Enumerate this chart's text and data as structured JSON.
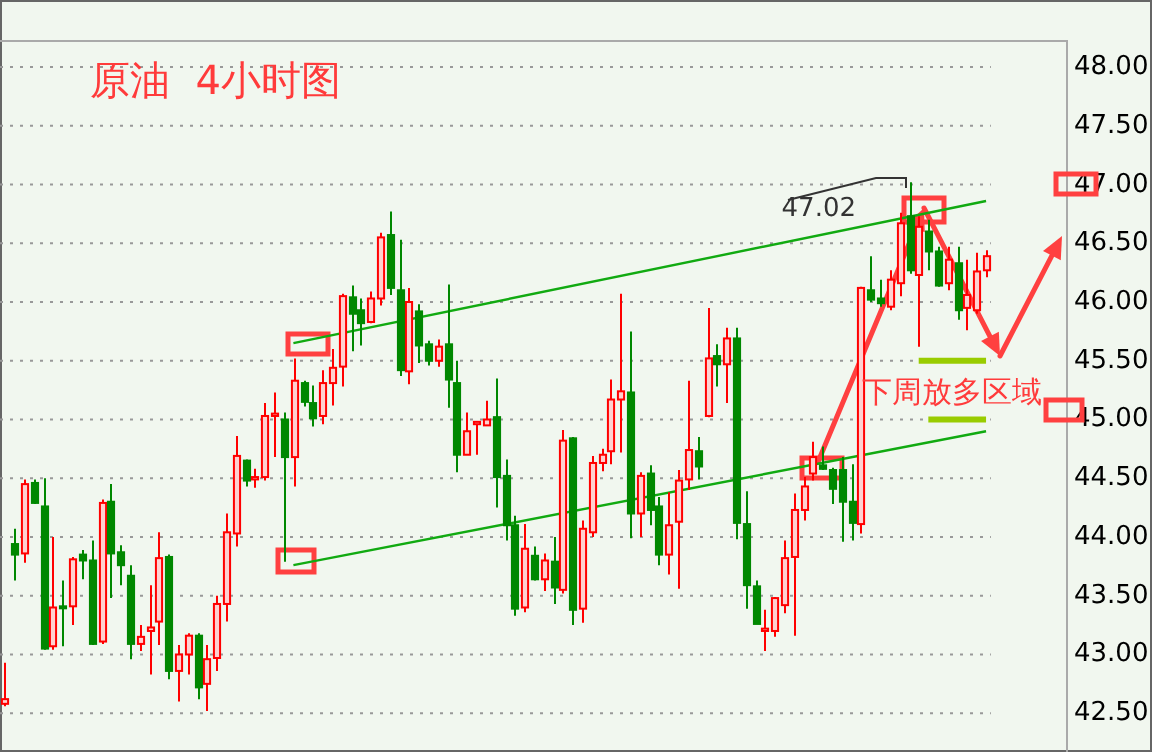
{
  "chart_data": {
    "type": "candlestick",
    "title": "原油  4小时图",
    "categories": [
      null,
      null,
      null,
      null,
      null,
      null,
      null,
      null,
      null,
      null,
      null,
      null,
      null,
      null,
      null,
      null,
      null,
      null,
      null,
      null,
      null,
      null,
      null,
      null,
      null,
      null,
      null,
      null,
      null,
      null,
      null,
      null,
      null,
      null,
      null,
      null,
      null,
      null,
      null,
      null,
      null,
      null,
      null,
      null,
      null,
      null,
      null,
      null,
      null,
      null,
      null,
      null,
      null,
      null,
      null,
      null,
      null,
      null,
      null,
      null,
      null,
      null,
      null,
      null,
      null,
      null,
      null,
      null,
      null,
      null,
      null,
      null,
      null,
      null,
      null,
      null,
      null,
      null,
      null,
      null,
      null,
      null,
      null,
      null,
      null,
      null,
      null,
      null,
      null,
      null,
      null,
      null,
      null,
      null,
      null,
      null,
      null,
      null,
      null,
      null,
      null,
      null,
      null
    ],
    "ylim": [
      42.17,
      48.23
    ],
    "yticks": [
      {
        "value": 42.5,
        "label": "42.50"
      },
      {
        "value": 43,
        "label": "43.00"
      },
      {
        "value": 43.5,
        "label": "43.50"
      },
      {
        "value": 44,
        "label": "44.00"
      },
      {
        "value": 44.5,
        "label": "44.50"
      },
      {
        "value": 45,
        "label": "45.00"
      },
      {
        "value": 45.5,
        "label": "45.50"
      },
      {
        "value": 46,
        "label": "46.00"
      },
      {
        "value": 46.5,
        "label": "46.50"
      },
      {
        "value": 47,
        "label": "47.00"
      },
      {
        "value": 47.5,
        "label": "47.50"
      },
      {
        "value": 48,
        "label": "48.00"
      }
    ],
    "tick_labels": "y",
    "grid": "y",
    "series": [
      {
        "ohlc": [
          [
            42.58,
            42.93,
            42.56,
            42.62
          ],
          [
            43.94,
            44.07,
            43.63,
            43.85
          ],
          [
            43.86,
            44.49,
            43.78,
            44.45
          ],
          [
            44.46,
            44.49,
            44.28,
            44.29
          ],
          [
            44.26,
            44.5,
            43.04,
            43.05
          ],
          [
            43.07,
            44.0,
            43.04,
            43.4
          ],
          [
            43.41,
            43.63,
            43.07,
            43.4
          ],
          [
            43.41,
            43.83,
            43.25,
            43.81
          ],
          [
            43.85,
            43.89,
            43.64,
            43.8
          ],
          [
            43.8,
            43.97,
            43.08,
            43.09
          ],
          [
            43.11,
            44.32,
            43.09,
            44.29
          ],
          [
            44.3,
            44.45,
            43.48,
            43.86
          ],
          [
            43.87,
            43.93,
            43.59,
            43.76
          ],
          [
            43.67,
            43.76,
            42.96,
            43.09
          ],
          [
            43.09,
            43.25,
            43.03,
            43.15
          ],
          [
            43.2,
            43.59,
            42.83,
            43.23
          ],
          [
            43.28,
            44.04,
            43.08,
            43.82
          ],
          [
            43.83,
            43.85,
            42.79,
            42.86
          ],
          [
            42.86,
            43.08,
            42.6,
            43.0
          ],
          [
            43.0,
            43.18,
            42.83,
            43.16
          ],
          [
            43.16,
            43.18,
            42.62,
            42.72
          ],
          [
            42.75,
            43.08,
            42.52,
            42.96
          ],
          [
            42.97,
            43.5,
            42.86,
            43.43
          ],
          [
            43.43,
            44.2,
            43.28,
            44.04
          ],
          [
            44.03,
            44.86,
            43.92,
            44.69
          ],
          [
            44.65,
            44.66,
            44.43,
            44.48
          ],
          [
            44.49,
            44.58,
            44.42,
            44.51
          ],
          [
            44.51,
            45.14,
            44.48,
            45.03
          ],
          [
            45.03,
            45.23,
            44.68,
            45.05
          ],
          [
            45.0,
            45.06,
            43.79,
            44.68
          ],
          [
            44.68,
            45.52,
            44.43,
            45.33
          ],
          [
            45.31,
            45.33,
            45.11,
            45.15
          ],
          [
            45.14,
            45.29,
            44.94,
            45.01
          ],
          [
            45.03,
            45.42,
            44.96,
            45.31
          ],
          [
            45.31,
            45.6,
            45.12,
            45.44
          ],
          [
            45.45,
            46.07,
            45.28,
            46.05
          ],
          [
            46.04,
            46.14,
            45.58,
            45.9
          ],
          [
            45.93,
            46.03,
            45.63,
            45.82
          ],
          [
            45.83,
            46.09,
            45.82,
            46.03
          ],
          [
            46.03,
            46.59,
            45.97,
            46.55
          ],
          [
            46.57,
            46.77,
            46.06,
            46.12
          ],
          [
            46.1,
            46.53,
            45.37,
            45.42
          ],
          [
            45.41,
            46.12,
            45.3,
            46.0
          ],
          [
            45.92,
            45.98,
            45.48,
            45.63
          ],
          [
            45.64,
            45.67,
            45.46,
            45.5
          ],
          [
            45.5,
            45.68,
            45.45,
            45.62
          ],
          [
            45.64,
            46.15,
            45.1,
            45.34
          ],
          [
            45.31,
            45.5,
            44.55,
            44.7
          ],
          [
            44.7,
            45.06,
            44.7,
            44.9
          ],
          [
            44.96,
            44.98,
            44.7,
            44.98
          ],
          [
            44.95,
            45.16,
            44.95,
            45.0
          ],
          [
            45.02,
            45.35,
            44.25,
            44.51
          ],
          [
            44.52,
            44.66,
            43.97,
            44.1
          ],
          [
            44.1,
            44.18,
            43.33,
            43.39
          ],
          [
            43.4,
            44.11,
            43.36,
            43.9
          ],
          [
            43.84,
            43.92,
            43.63,
            43.64
          ],
          [
            43.64,
            43.86,
            43.54,
            43.8
          ],
          [
            43.79,
            44.0,
            43.43,
            43.57
          ],
          [
            43.55,
            44.91,
            43.52,
            44.82
          ],
          [
            44.84,
            44.85,
            43.25,
            43.38
          ],
          [
            43.39,
            44.14,
            43.27,
            44.07
          ],
          [
            44.04,
            44.69,
            44.0,
            44.63
          ],
          [
            44.63,
            44.75,
            44.56,
            44.7
          ],
          [
            44.73,
            45.34,
            44.62,
            45.17
          ],
          [
            45.17,
            46.07,
            44.72,
            45.24
          ],
          [
            45.23,
            45.75,
            43.99,
            44.2
          ],
          [
            44.2,
            44.55,
            44.0,
            44.52
          ],
          [
            44.54,
            44.61,
            44.1,
            44.23
          ],
          [
            44.26,
            44.34,
            43.76,
            43.85
          ],
          [
            43.85,
            44.38,
            43.68,
            44.1
          ],
          [
            44.13,
            44.57,
            43.56,
            44.48
          ],
          [
            44.49,
            45.33,
            44.4,
            44.74
          ],
          [
            44.73,
            44.85,
            44.49,
            44.6
          ],
          [
            45.03,
            45.95,
            45.02,
            45.52
          ],
          [
            45.54,
            45.64,
            45.28,
            45.47
          ],
          [
            45.47,
            45.78,
            45.14,
            45.69
          ],
          [
            45.69,
            45.78,
            43.98,
            44.12
          ],
          [
            44.11,
            44.39,
            43.39,
            43.59
          ],
          [
            43.58,
            43.63,
            43.26,
            43.26
          ],
          [
            43.2,
            43.38,
            43.03,
            43.22
          ],
          [
            43.2,
            43.49,
            43.15,
            43.48
          ],
          [
            43.42,
            43.97,
            43.35,
            43.82
          ],
          [
            43.83,
            44.37,
            43.16,
            44.23
          ],
          [
            44.23,
            44.51,
            44.14,
            44.43
          ],
          [
            44.54,
            44.81,
            44.48,
            44.68
          ],
          [
            44.61,
            44.77,
            44.57,
            44.58
          ],
          [
            44.57,
            44.59,
            44.28,
            44.41
          ],
          [
            44.57,
            44.68,
            43.96,
            44.3
          ],
          [
            44.3,
            44.62,
            43.97,
            44.12
          ],
          [
            44.11,
            46.13,
            44.03,
            46.12
          ],
          [
            46.1,
            46.39,
            46.0,
            46.02
          ],
          [
            46.03,
            46.19,
            45.96,
            45.99
          ],
          [
            45.96,
            46.27,
            45.93,
            46.19
          ],
          [
            46.16,
            46.76,
            46.05,
            46.67
          ],
          [
            46.73,
            47.02,
            46.24,
            46.27
          ],
          [
            46.23,
            46.73,
            45.62,
            46.64
          ],
          [
            46.6,
            46.7,
            46.27,
            46.43
          ],
          [
            46.43,
            46.47,
            46.13,
            46.14
          ],
          [
            46.16,
            46.47,
            46.1,
            46.36
          ],
          [
            46.33,
            46.47,
            45.85,
            45.93
          ],
          [
            45.95,
            46.36,
            45.76,
            46.06
          ],
          [
            45.93,
            46.42,
            45.9,
            46.26
          ],
          [
            46.27,
            46.44,
            46.21,
            46.39
          ]
        ],
        "colors": [
          "#ff0000",
          "#008800",
          "#ff0000",
          "#008800",
          "#008800",
          "#ff0000",
          "#008800",
          "#ff0000",
          "#008800",
          "#008800",
          "#ff0000",
          "#008800",
          "#008800",
          "#008800",
          "#ff0000",
          "#ff0000",
          "#ff0000",
          "#008800",
          "#ff0000",
          "#ff0000",
          "#008800",
          "#ff0000",
          "#ff0000",
          "#ff0000",
          "#ff0000",
          "#008800",
          "#ff0000",
          "#ff0000",
          "#ff0000",
          "#008800",
          "#ff0000",
          "#008800",
          "#008800",
          "#ff0000",
          "#ff0000",
          "#ff0000",
          "#008800",
          "#008800",
          "#ff0000",
          "#ff0000",
          "#008800",
          "#008800",
          "#ff0000",
          "#008800",
          "#008800",
          "#ff0000",
          "#008800",
          "#008800",
          "#ff0000",
          "#ff0000",
          "#ff0000",
          "#008800",
          "#008800",
          "#008800",
          "#ff0000",
          "#008800",
          "#ff0000",
          "#008800",
          "#ff0000",
          "#008800",
          "#ff0000",
          "#ff0000",
          "#ff0000",
          "#ff0000",
          "#ff0000",
          "#008800",
          "#ff0000",
          "#008800",
          "#008800",
          "#ff0000",
          "#ff0000",
          "#ff0000",
          "#008800",
          "#ff0000",
          "#008800",
          "#ff0000",
          "#008800",
          "#008800",
          "#008800",
          "#ff0000",
          "#ff0000",
          "#ff0000",
          "#ff0000",
          "#ff0000",
          "#ff0000",
          "#008800",
          "#008800",
          "#008800",
          "#008800",
          "#ff0000",
          "#008800",
          "#008800",
          "#ff0000",
          "#ff0000",
          "#008800",
          "#ff0000",
          "#008800",
          "#008800",
          "#ff0000",
          "#008800",
          "#ff0000",
          "#ff0000",
          "#ff0000"
        ]
      },
      {
        "type": "line",
        "values": [
          null,
          null,
          null,
          null,
          null,
          null,
          null,
          null,
          null,
          null,
          null,
          null,
          null,
          null,
          null,
          null,
          null,
          null,
          null,
          null,
          null,
          null,
          null,
          null,
          null,
          null,
          null,
          null,
          null,
          null,
          45.65,
          null,
          null,
          null,
          null,
          null,
          null,
          null,
          null,
          null,
          null,
          null,
          null,
          null,
          null,
          null,
          null,
          null,
          null,
          null,
          null,
          null,
          null,
          null,
          null,
          null,
          null,
          null,
          null,
          null,
          null,
          null,
          null,
          null,
          null,
          null,
          null,
          null,
          null,
          null,
          null,
          null,
          null,
          null,
          null,
          null,
          null,
          null,
          null,
          null,
          null,
          null,
          null,
          null,
          null,
          null,
          null,
          null,
          null,
          null,
          null,
          null,
          null,
          null,
          null,
          null,
          null,
          null,
          null,
          null,
          null,
          null,
          46.86
        ],
        "color": "#11aa11"
      },
      {
        "type": "line",
        "values": [
          null,
          null,
          null,
          null,
          null,
          null,
          null,
          null,
          null,
          null,
          null,
          null,
          null,
          null,
          null,
          null,
          null,
          null,
          null,
          null,
          null,
          null,
          null,
          null,
          null,
          null,
          null,
          null,
          null,
          null,
          43.76,
          null,
          null,
          null,
          null,
          null,
          null,
          null,
          null,
          null,
          null,
          null,
          null,
          null,
          null,
          null,
          null,
          null,
          null,
          null,
          null,
          null,
          null,
          null,
          null,
          null,
          null,
          null,
          null,
          null,
          null,
          null,
          null,
          null,
          null,
          null,
          null,
          null,
          null,
          null,
          null,
          null,
          null,
          null,
          null,
          null,
          null,
          null,
          null,
          null,
          null,
          null,
          null,
          null,
          null,
          null,
          null,
          null,
          null,
          null,
          null,
          null,
          null,
          null,
          null,
          null,
          null,
          null,
          null,
          null,
          null,
          null,
          44.9
        ],
        "color": "#11aa11"
      },
      {
        "type": "line",
        "values": [
          null,
          null,
          null,
          null,
          null,
          null,
          null,
          null,
          null,
          null,
          null,
          null,
          null,
          null,
          null,
          null,
          null,
          null,
          null,
          null,
          null,
          null,
          null,
          null,
          null,
          null,
          null,
          null,
          null,
          null,
          null,
          null,
          null,
          null,
          null,
          null,
          null,
          null,
          null,
          null,
          null,
          null,
          null,
          null,
          null,
          null,
          null,
          null,
          null,
          null,
          null,
          null,
          null,
          null,
          null,
          null,
          null,
          null,
          null,
          null,
          null,
          null,
          null,
          null,
          null,
          null,
          null,
          null,
          null,
          null,
          null,
          null,
          null,
          null,
          null,
          null,
          null,
          null,
          null,
          null,
          null,
          null,
          null,
          null,
          null,
          null,
          null,
          null,
          null,
          null,
          null,
          null,
          null,
          null,
          null,
          45.5,
          45.5,
          45.5,
          45.5,
          45.5,
          45.5,
          45.5,
          45.5
        ],
        "color": "#99cc00"
      },
      {
        "type": "line",
        "values": [
          null,
          null,
          null,
          null,
          null,
          null,
          null,
          null,
          null,
          null,
          null,
          null,
          null,
          null,
          null,
          null,
          null,
          null,
          null,
          null,
          null,
          null,
          null,
          null,
          null,
          null,
          null,
          null,
          null,
          null,
          null,
          null,
          null,
          null,
          null,
          null,
          null,
          null,
          null,
          null,
          null,
          null,
          null,
          null,
          null,
          null,
          null,
          null,
          null,
          null,
          null,
          null,
          null,
          null,
          null,
          null,
          null,
          null,
          null,
          null,
          null,
          null,
          null,
          null,
          null,
          null,
          null,
          null,
          null,
          null,
          null,
          null,
          null,
          null,
          null,
          null,
          null,
          null,
          null,
          null,
          null,
          null,
          null,
          null,
          null,
          null,
          null,
          null,
          null,
          null,
          null,
          null,
          null,
          null,
          null,
          null,
          45.0,
          45.0,
          45.0,
          45.0,
          45.0,
          45.0,
          45.0
        ],
        "color": "#99cc00"
      }
    ],
    "annotations": [
      "47.02",
      "下周放多区域"
    ]
  }
}
